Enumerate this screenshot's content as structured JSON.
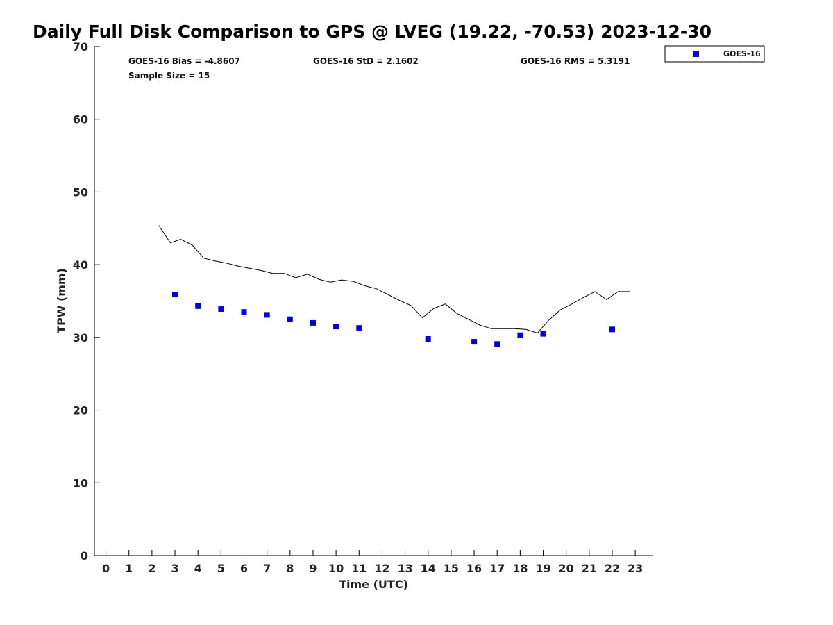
{
  "chart_data": {
    "type": "scatter",
    "title": "Daily Full Disk Comparison to GPS @ LVEG (19.22, -70.53) 2023-12-30",
    "xlabel": "Time (UTC)",
    "ylabel": "TPW (mm)",
    "xlim": [
      -0.5,
      23.75
    ],
    "ylim": [
      0,
      70
    ],
    "xticks": [
      "0",
      "1",
      "2",
      "3",
      "4",
      "5",
      "6",
      "7",
      "8",
      "9",
      "10",
      "11",
      "12",
      "13",
      "14",
      "15",
      "16",
      "17",
      "18",
      "19",
      "20",
      "21",
      "22",
      "23"
    ],
    "yticks": [
      "0",
      "10",
      "20",
      "30",
      "40",
      "50",
      "60",
      "70"
    ],
    "grid": false,
    "legend": {
      "position": "top-right",
      "entries": [
        "GOES-16"
      ]
    },
    "stats": {
      "bias": "GOES-16 Bias = -4.8607",
      "std": "GOES-16 StD = 2.1602",
      "rms": "GOES-16 RMS = 5.3191",
      "sample_size": "Sample Size = 15"
    },
    "series": [
      {
        "name": "GOES-16",
        "kind": "scatter",
        "color": "#0000dd",
        "x": [
          3,
          4,
          5,
          6,
          7,
          8,
          9,
          10,
          11,
          14,
          16,
          17,
          18,
          19,
          22
        ],
        "y": [
          35.9,
          34.3,
          33.9,
          33.5,
          33.1,
          32.5,
          32.0,
          31.5,
          31.3,
          29.8,
          29.4,
          29.1,
          30.3,
          30.5,
          31.1
        ]
      },
      {
        "kind": "line",
        "color": "#000000",
        "x": [
          2.3,
          2.8,
          3.25,
          3.75,
          4.25,
          4.75,
          5.25,
          5.75,
          6.25,
          6.75,
          7.25,
          7.75,
          8.25,
          8.75,
          9.25,
          9.75,
          10.25,
          10.75,
          11.25,
          11.75,
          12.25,
          12.75,
          13.25,
          13.75,
          14.25,
          14.75,
          15.25,
          15.75,
          16.25,
          16.75,
          17.25,
          17.75,
          18.25,
          18.75,
          19.25,
          19.75,
          20.25,
          20.75,
          21.25,
          21.75,
          22.25,
          22.75
        ],
        "y": [
          45.4,
          43.0,
          43.5,
          42.7,
          40.9,
          40.5,
          40.2,
          39.8,
          39.5,
          39.2,
          38.8,
          38.8,
          38.2,
          38.7,
          38.0,
          37.6,
          37.9,
          37.7,
          37.1,
          36.7,
          35.9,
          35.1,
          34.4,
          32.7,
          34.0,
          34.6,
          33.3,
          32.5,
          31.7,
          31.2,
          31.2,
          31.2,
          31.1,
          30.6,
          32.4,
          33.8,
          34.6,
          35.5,
          36.3,
          35.2,
          36.3,
          36.3
        ]
      }
    ]
  }
}
